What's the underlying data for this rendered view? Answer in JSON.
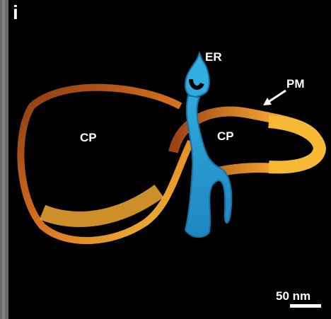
{
  "panel_label": "i",
  "labels": {
    "er": "ER",
    "pm": "PM",
    "cp_left": "CP",
    "cp_right": "CP"
  },
  "scale_bar": {
    "label": "50 nm"
  }
}
